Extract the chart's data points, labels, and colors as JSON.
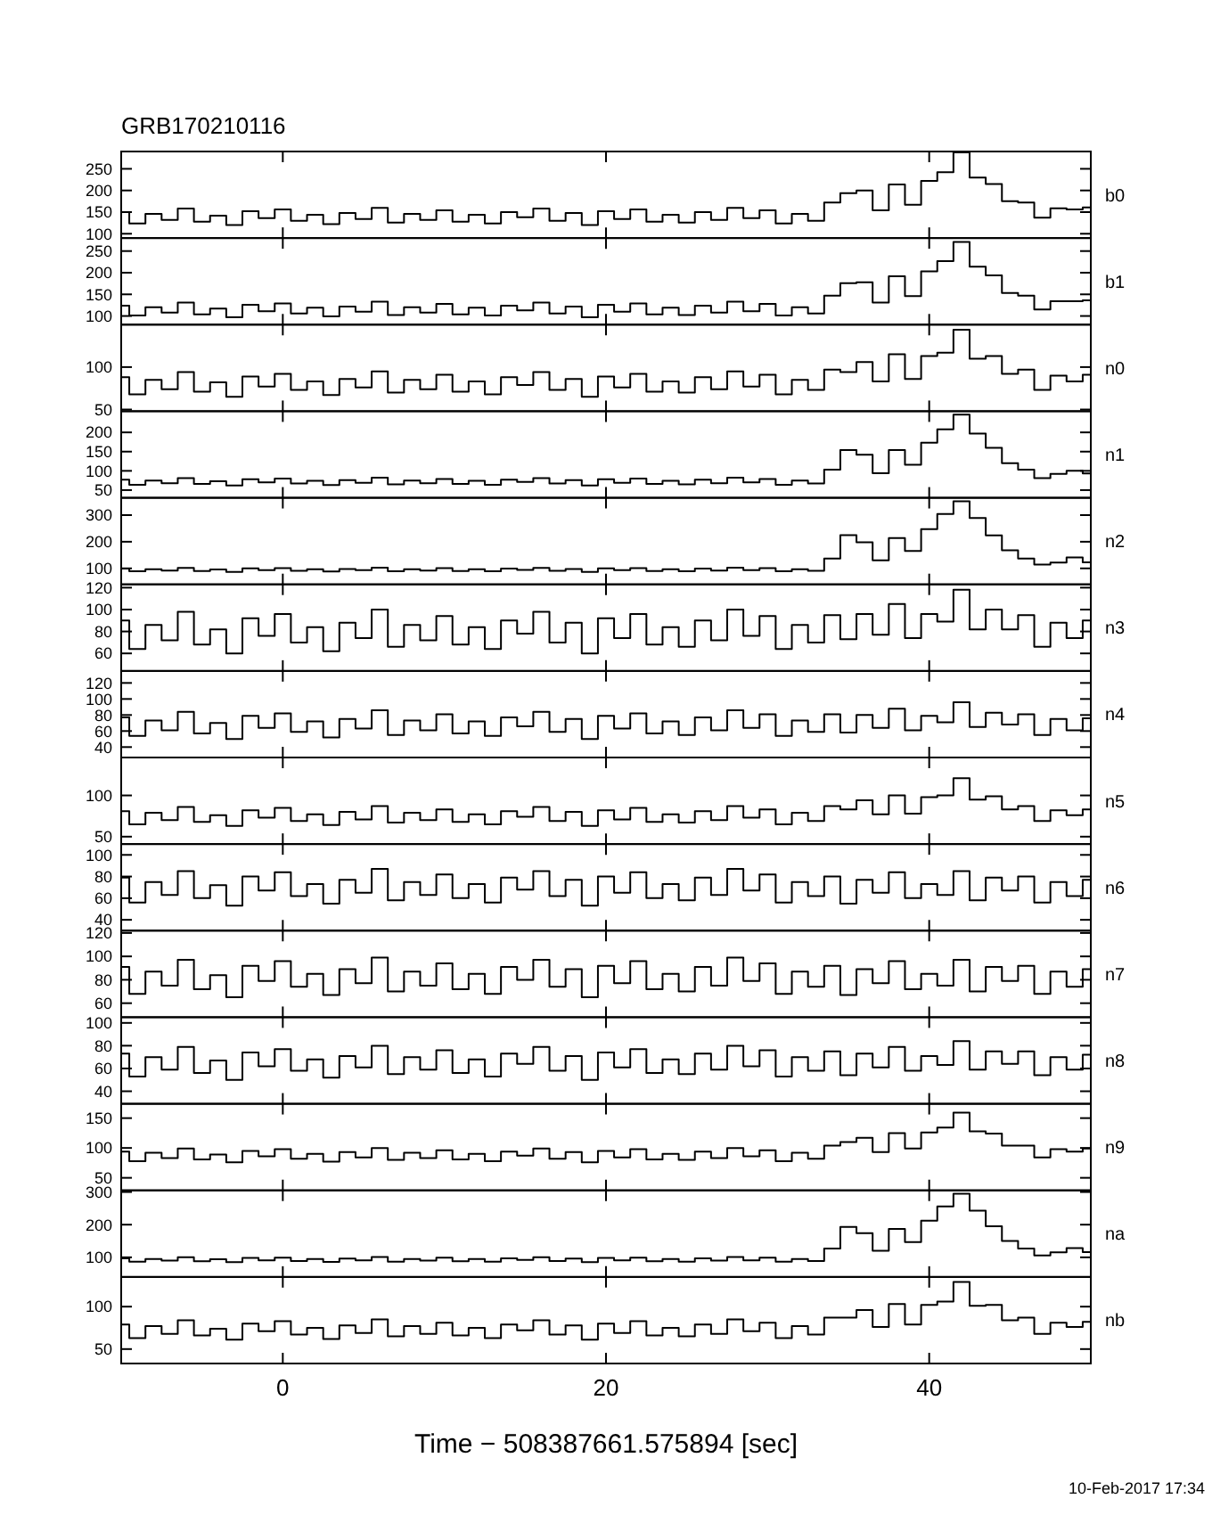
{
  "chart_data": [
    {
      "type": "step",
      "title": "GRB170210116",
      "x": [
        -10,
        -9,
        -8,
        -7,
        -6,
        -5,
        -4,
        -3,
        -2,
        -1,
        0,
        1,
        2,
        3,
        4,
        5,
        6,
        7,
        8,
        9,
        10,
        11,
        12,
        13,
        14,
        15,
        16,
        17,
        18,
        19,
        20,
        21,
        22,
        23,
        24,
        25,
        26,
        27,
        28,
        29,
        30,
        31,
        32,
        33,
        34,
        35,
        36,
        37,
        38,
        39,
        40,
        41,
        42,
        43,
        44,
        45,
        46,
        47,
        48,
        49,
        50
      ],
      "xlim": [
        -10,
        50
      ],
      "xticks": [
        0,
        20,
        40
      ],
      "ylim": [
        90,
        290
      ],
      "yticks": [
        100,
        150,
        200,
        250
      ],
      "tick_labels": "y",
      "color": "#000000",
      "series": [
        {
          "name": "b0",
          "values": [
            150,
            124,
            146,
            132,
            158,
            128,
            142,
            120,
            152,
            136,
            156,
            130,
            144,
            122,
            148,
            134,
            160,
            126,
            146,
            132,
            154,
            128,
            144,
            124,
            150,
            138,
            158,
            130,
            148,
            120,
            152,
            134,
            156,
            128,
            144,
            126,
            150,
            132,
            160,
            136,
            154,
            124,
            146,
            130,
            172,
            194,
            200,
            154,
            214,
            167,
            222,
            242,
            288,
            230,
            215,
            175,
            172,
            137,
            159,
            156,
            161
          ]
        }
      ]
    },
    {
      "type": "step",
      "x": [
        -10,
        -9,
        -8,
        -7,
        -6,
        -5,
        -4,
        -3,
        -2,
        -1,
        0,
        1,
        2,
        3,
        4,
        5,
        6,
        7,
        8,
        9,
        10,
        11,
        12,
        13,
        14,
        15,
        16,
        17,
        18,
        19,
        20,
        21,
        22,
        23,
        24,
        25,
        26,
        27,
        28,
        29,
        30,
        31,
        32,
        33,
        34,
        35,
        36,
        37,
        38,
        39,
        40,
        41,
        42,
        43,
        44,
        45,
        46,
        47,
        48,
        49,
        50
      ],
      "xlim": [
        -10,
        50
      ],
      "xticks": [
        0,
        20,
        40
      ],
      "ylim": [
        80,
        280
      ],
      "yticks": [
        100,
        150,
        200,
        250
      ],
      "tick_labels": "y",
      "color": "#000000",
      "series": [
        {
          "name": "b1",
          "values": [
            124,
            101,
            120,
            108,
            131,
            104,
            117,
            97,
            126,
            111,
            129,
            106,
            119,
            99,
            122,
            110,
            133,
            102,
            120,
            108,
            128,
            104,
            119,
            101,
            124,
            113,
            131,
            106,
            122,
            97,
            126,
            110,
            129,
            104,
            119,
            102,
            124,
            108,
            133,
            111,
            128,
            101,
            120,
            106,
            147,
            176,
            178,
            131,
            192,
            146,
            203,
            227,
            271,
            214,
            194,
            153,
            147,
            115,
            134,
            134,
            136
          ]
        }
      ]
    },
    {
      "type": "step",
      "x": [
        -10,
        -9,
        -8,
        -7,
        -6,
        -5,
        -4,
        -3,
        -2,
        -1,
        0,
        1,
        2,
        3,
        4,
        5,
        6,
        7,
        8,
        9,
        10,
        11,
        12,
        13,
        14,
        15,
        16,
        17,
        18,
        19,
        20,
        21,
        22,
        23,
        24,
        25,
        26,
        27,
        28,
        29,
        30,
        31,
        32,
        33,
        34,
        35,
        36,
        37,
        38,
        39,
        40,
        41,
        42,
        43,
        44,
        45,
        46,
        47,
        48,
        49,
        50
      ],
      "xlim": [
        -10,
        50
      ],
      "xticks": [
        0,
        20,
        40
      ],
      "ylim": [
        48,
        150
      ],
      "yticks": [
        50,
        100
      ],
      "tick_labels": "y",
      "color": "#000000",
      "series": [
        {
          "name": "n0",
          "values": [
            88,
            68,
            85,
            74,
            94,
            71,
            82,
            65,
            89,
            77,
            92,
            73,
            83,
            67,
            86,
            76,
            95,
            70,
            85,
            74,
            91,
            71,
            83,
            68,
            88,
            79,
            94,
            73,
            86,
            65,
            89,
            76,
            92,
            71,
            83,
            70,
            88,
            74,
            95,
            77,
            91,
            68,
            85,
            73,
            97,
            94,
            106,
            83,
            115,
            86,
            113,
            117,
            144,
            110,
            113,
            92,
            97,
            73,
            90,
            83,
            91
          ]
        }
      ]
    },
    {
      "type": "step",
      "x": [
        -10,
        -9,
        -8,
        -7,
        -6,
        -5,
        -4,
        -3,
        -2,
        -1,
        0,
        1,
        2,
        3,
        4,
        5,
        6,
        7,
        8,
        9,
        10,
        11,
        12,
        13,
        14,
        15,
        16,
        17,
        18,
        19,
        20,
        21,
        22,
        23,
        24,
        25,
        26,
        27,
        28,
        29,
        30,
        31,
        32,
        33,
        34,
        35,
        36,
        37,
        38,
        39,
        40,
        41,
        42,
        43,
        44,
        45,
        46,
        47,
        48,
        49,
        50
      ],
      "xlim": [
        -10,
        50
      ],
      "xticks": [
        0,
        20,
        40
      ],
      "ylim": [
        30,
        255
      ],
      "yticks": [
        50,
        100,
        150,
        200
      ],
      "tick_labels": "y",
      "color": "#000000",
      "series": [
        {
          "name": "n1",
          "values": [
            77,
            64,
            75,
            68,
            81,
            66,
            73,
            62,
            78,
            70,
            80,
            67,
            74,
            63,
            76,
            69,
            82,
            65,
            75,
            68,
            79,
            66,
            74,
            64,
            77,
            71,
            81,
            67,
            76,
            62,
            78,
            69,
            80,
            66,
            74,
            65,
            77,
            68,
            82,
            70,
            79,
            64,
            75,
            67,
            103,
            154,
            142,
            94,
            154,
            116,
            173,
            208,
            246,
            197,
            160,
            120,
            103,
            81,
            92,
            100,
            93
          ]
        }
      ]
    },
    {
      "type": "step",
      "x": [
        -10,
        -9,
        -8,
        -7,
        -6,
        -5,
        -4,
        -3,
        -2,
        -1,
        0,
        1,
        2,
        3,
        4,
        5,
        6,
        7,
        8,
        9,
        10,
        11,
        12,
        13,
        14,
        15,
        16,
        17,
        18,
        19,
        20,
        21,
        22,
        23,
        24,
        25,
        26,
        27,
        28,
        29,
        30,
        31,
        32,
        33,
        34,
        35,
        36,
        37,
        38,
        39,
        40,
        41,
        42,
        43,
        44,
        45,
        46,
        47,
        48,
        49,
        50
      ],
      "xlim": [
        -10,
        50
      ],
      "xticks": [
        0,
        20,
        40
      ],
      "ylim": [
        40,
        365
      ],
      "yticks": [
        100,
        200,
        300
      ],
      "tick_labels": "y",
      "color": "#000000",
      "series": [
        {
          "name": "n2",
          "values": [
            99,
            89,
            97,
            92,
            102,
            90,
            96,
            87,
            100,
            93,
            101,
            91,
            97,
            88,
            98,
            93,
            103,
            89,
            97,
            92,
            101,
            90,
            97,
            89,
            99,
            94,
            102,
            91,
            98,
            87,
            100,
            93,
            101,
            90,
            97,
            89,
            99,
            92,
            103,
            93,
            101,
            89,
            97,
            91,
            137,
            225,
            198,
            130,
            214,
            165,
            247,
            304,
            352,
            289,
            224,
            168,
            137,
            114,
            122,
            141,
            123
          ]
        }
      ]
    },
    {
      "type": "step",
      "x": [
        -10,
        -9,
        -8,
        -7,
        -6,
        -5,
        -4,
        -3,
        -2,
        -1,
        0,
        1,
        2,
        3,
        4,
        5,
        6,
        7,
        8,
        9,
        10,
        11,
        12,
        13,
        14,
        15,
        16,
        17,
        18,
        19,
        20,
        21,
        22,
        23,
        24,
        25,
        26,
        27,
        28,
        29,
        30,
        31,
        32,
        33,
        34,
        35,
        36,
        37,
        38,
        39,
        40,
        41,
        42,
        43,
        44,
        45,
        46,
        47,
        48,
        49,
        50
      ],
      "xlim": [
        -10,
        50
      ],
      "xticks": [
        0,
        20,
        40
      ],
      "ylim": [
        44,
        123
      ],
      "yticks": [
        60,
        80,
        100,
        120
      ],
      "tick_labels": "y",
      "color": "#000000",
      "series": [
        {
          "name": "n3",
          "values": [
            90,
            64,
            86,
            72,
            98,
            68,
            82,
            60,
            92,
            76,
            96,
            70,
            84,
            62,
            88,
            74,
            100,
            66,
            86,
            72,
            94,
            68,
            84,
            64,
            90,
            78,
            98,
            70,
            88,
            60,
            92,
            74,
            96,
            68,
            84,
            66,
            90,
            72,
            100,
            76,
            94,
            64,
            86,
            70,
            95,
            73,
            96,
            77,
            105,
            74,
            96,
            89,
            118,
            82,
            100,
            82,
            95,
            66,
            88,
            74,
            90
          ]
        }
      ]
    },
    {
      "type": "step",
      "x": [
        -10,
        -9,
        -8,
        -7,
        -6,
        -5,
        -4,
        -3,
        -2,
        -1,
        0,
        1,
        2,
        3,
        4,
        5,
        6,
        7,
        8,
        9,
        10,
        11,
        12,
        13,
        14,
        15,
        16,
        17,
        18,
        19,
        20,
        21,
        22,
        23,
        24,
        25,
        26,
        27,
        28,
        29,
        30,
        31,
        32,
        33,
        34,
        35,
        36,
        37,
        38,
        39,
        40,
        41,
        42,
        43,
        44,
        45,
        46,
        47,
        48,
        49,
        50
      ],
      "xlim": [
        -10,
        50
      ],
      "xticks": [
        0,
        20,
        40
      ],
      "ylim": [
        27,
        135
      ],
      "yticks": [
        40,
        60,
        80,
        100,
        120
      ],
      "tick_labels": "y",
      "color": "#000000",
      "series": [
        {
          "name": "n4",
          "values": [
            77,
            54,
            73,
            61,
            84,
            57,
            70,
            50,
            79,
            64,
            82,
            59,
            72,
            52,
            75,
            63,
            86,
            55,
            73,
            61,
            81,
            57,
            72,
            54,
            77,
            66,
            84,
            59,
            75,
            50,
            79,
            63,
            82,
            57,
            72,
            55,
            77,
            61,
            86,
            64,
            81,
            54,
            73,
            59,
            81,
            58,
            80,
            64,
            88,
            61,
            79,
            71,
            96,
            65,
            83,
            68,
            81,
            55,
            75,
            61,
            76
          ]
        }
      ]
    },
    {
      "type": "step",
      "x": [
        -10,
        -9,
        -8,
        -7,
        -6,
        -5,
        -4,
        -3,
        -2,
        -1,
        0,
        1,
        2,
        3,
        4,
        5,
        6,
        7,
        8,
        9,
        10,
        11,
        12,
        13,
        14,
        15,
        16,
        17,
        18,
        19,
        20,
        21,
        22,
        23,
        24,
        25,
        26,
        27,
        28,
        29,
        30,
        31,
        32,
        33,
        34,
        35,
        36,
        37,
        38,
        39,
        40,
        41,
        42,
        43,
        44,
        45,
        46,
        47,
        48,
        49,
        50
      ],
      "xlim": [
        -10,
        50
      ],
      "xticks": [
        0,
        20,
        40
      ],
      "ylim": [
        41,
        146
      ],
      "yticks": [
        50,
        100
      ],
      "tick_labels": "y",
      "color": "#000000",
      "series": [
        {
          "name": "n5",
          "values": [
            81,
            65,
            79,
            70,
            86,
            68,
            76,
            63,
            82,
            73,
            85,
            69,
            77,
            64,
            80,
            71,
            87,
            67,
            79,
            70,
            83,
            68,
            77,
            65,
            81,
            74,
            86,
            69,
            80,
            63,
            82,
            71,
            85,
            68,
            77,
            67,
            81,
            70,
            87,
            73,
            83,
            65,
            79,
            69,
            87,
            83,
            94,
            77,
            100,
            78,
            98,
            100,
            121,
            95,
            99,
            83,
            87,
            69,
            82,
            76,
            83
          ]
        }
      ]
    },
    {
      "type": "step",
      "x": [
        -10,
        -9,
        -8,
        -7,
        -6,
        -5,
        -4,
        -3,
        -2,
        -1,
        0,
        1,
        2,
        3,
        4,
        5,
        6,
        7,
        8,
        9,
        10,
        11,
        12,
        13,
        14,
        15,
        16,
        17,
        18,
        19,
        20,
        21,
        22,
        23,
        24,
        25,
        26,
        27,
        28,
        29,
        30,
        31,
        32,
        33,
        34,
        35,
        36,
        37,
        38,
        39,
        40,
        41,
        42,
        43,
        44,
        45,
        46,
        47,
        48,
        49,
        50
      ],
      "xlim": [
        -10,
        50
      ],
      "xticks": [
        0,
        20,
        40
      ],
      "ylim": [
        30,
        110
      ],
      "yticks": [
        40,
        60,
        80,
        100
      ],
      "tick_labels": "y",
      "color": "#000000",
      "series": [
        {
          "name": "n6",
          "values": [
            79,
            56,
            75,
            63,
            85,
            60,
            72,
            53,
            80,
            67,
            84,
            62,
            73,
            55,
            77,
            65,
            87,
            58,
            75,
            63,
            82,
            60,
            73,
            56,
            79,
            68,
            85,
            62,
            77,
            53,
            80,
            65,
            84,
            60,
            73,
            58,
            79,
            63,
            87,
            67,
            82,
            56,
            75,
            62,
            80,
            55,
            77,
            65,
            84,
            60,
            73,
            63,
            85,
            58,
            79,
            67,
            80,
            56,
            75,
            62,
            77
          ]
        }
      ]
    },
    {
      "type": "step",
      "x": [
        -10,
        -9,
        -8,
        -7,
        -6,
        -5,
        -4,
        -3,
        -2,
        -1,
        0,
        1,
        2,
        3,
        4,
        5,
        6,
        7,
        8,
        9,
        10,
        11,
        12,
        13,
        14,
        15,
        16,
        17,
        18,
        19,
        20,
        21,
        22,
        23,
        24,
        25,
        26,
        27,
        28,
        29,
        30,
        31,
        32,
        33,
        34,
        35,
        36,
        37,
        38,
        39,
        40,
        41,
        42,
        43,
        44,
        45,
        46,
        47,
        48,
        49,
        50
      ],
      "xlim": [
        -10,
        50
      ],
      "xticks": [
        0,
        20,
        40
      ],
      "ylim": [
        48,
        122
      ],
      "yticks": [
        60,
        80,
        100,
        120
      ],
      "tick_labels": "y",
      "color": "#000000",
      "series": [
        {
          "name": "n7",
          "values": [
            91,
            68,
            87,
            75,
            97,
            72,
            84,
            65,
            92,
            79,
            96,
            74,
            85,
            67,
            89,
            77,
            99,
            70,
            87,
            75,
            94,
            72,
            85,
            68,
            91,
            80,
            97,
            74,
            89,
            65,
            92,
            77,
            96,
            72,
            85,
            70,
            91,
            75,
            99,
            79,
            94,
            68,
            87,
            74,
            92,
            67,
            89,
            77,
            96,
            72,
            85,
            75,
            97,
            70,
            91,
            79,
            92,
            68,
            87,
            74,
            89
          ]
        }
      ]
    },
    {
      "type": "step",
      "x": [
        -10,
        -9,
        -8,
        -7,
        -6,
        -5,
        -4,
        -3,
        -2,
        -1,
        0,
        1,
        2,
        3,
        4,
        5,
        6,
        7,
        8,
        9,
        10,
        11,
        12,
        13,
        14,
        15,
        16,
        17,
        18,
        19,
        20,
        21,
        22,
        23,
        24,
        25,
        26,
        27,
        28,
        29,
        30,
        31,
        32,
        33,
        34,
        35,
        36,
        37,
        38,
        39,
        40,
        41,
        42,
        43,
        44,
        45,
        46,
        47,
        48,
        49,
        50
      ],
      "xlim": [
        -10,
        50
      ],
      "xticks": [
        0,
        20,
        40
      ],
      "ylim": [
        29,
        105
      ],
      "yticks": [
        40,
        60,
        80,
        100
      ],
      "tick_labels": "y",
      "color": "#000000",
      "series": [
        {
          "name": "n8",
          "values": [
            73,
            53,
            70,
            59,
            79,
            56,
            67,
            50,
            74,
            62,
            77,
            58,
            68,
            52,
            71,
            61,
            80,
            55,
            70,
            59,
            76,
            56,
            68,
            53,
            73,
            64,
            79,
            58,
            71,
            50,
            74,
            61,
            77,
            56,
            68,
            55,
            73,
            59,
            80,
            62,
            76,
            53,
            70,
            58,
            75,
            54,
            73,
            61,
            79,
            58,
            71,
            63,
            84,
            59,
            75,
            64,
            75,
            54,
            70,
            59,
            72
          ]
        }
      ]
    },
    {
      "type": "step",
      "x": [
        -10,
        -9,
        -8,
        -7,
        -6,
        -5,
        -4,
        -3,
        -2,
        -1,
        0,
        1,
        2,
        3,
        4,
        5,
        6,
        7,
        8,
        9,
        10,
        11,
        12,
        13,
        14,
        15,
        16,
        17,
        18,
        19,
        20,
        21,
        22,
        23,
        24,
        25,
        26,
        27,
        28,
        29,
        30,
        31,
        32,
        33,
        34,
        35,
        36,
        37,
        38,
        39,
        40,
        41,
        42,
        43,
        44,
        45,
        46,
        47,
        48,
        49,
        50
      ],
      "xlim": [
        -10,
        50
      ],
      "xticks": [
        0,
        20,
        40
      ],
      "ylim": [
        29,
        174
      ],
      "yticks": [
        50,
        100,
        150
      ],
      "tick_labels": "y",
      "color": "#000000",
      "series": [
        {
          "name": "n9",
          "values": [
            94,
            78,
            92,
            83,
            99,
            81,
            89,
            76,
            95,
            86,
            98,
            82,
            90,
            77,
            93,
            84,
            100,
            80,
            92,
            83,
            96,
            81,
            90,
            78,
            94,
            87,
            99,
            82,
            93,
            76,
            95,
            84,
            98,
            81,
            90,
            80,
            94,
            83,
            100,
            86,
            96,
            78,
            92,
            82,
            104,
            110,
            117,
            93,
            125,
            99,
            126,
            134,
            159,
            128,
            124,
            104,
            104,
            84,
            98,
            94,
            99
          ]
        }
      ]
    },
    {
      "type": "step",
      "x": [
        -10,
        -9,
        -8,
        -7,
        -6,
        -5,
        -4,
        -3,
        -2,
        -1,
        0,
        1,
        2,
        3,
        4,
        5,
        6,
        7,
        8,
        9,
        10,
        11,
        12,
        13,
        14,
        15,
        16,
        17,
        18,
        19,
        20,
        21,
        22,
        23,
        24,
        25,
        26,
        27,
        28,
        29,
        30,
        31,
        32,
        33,
        34,
        35,
        36,
        37,
        38,
        39,
        40,
        41,
        42,
        43,
        44,
        45,
        46,
        47,
        48,
        49,
        50
      ],
      "xlim": [
        -10,
        50
      ],
      "xticks": [
        0,
        20,
        40
      ],
      "ylim": [
        40,
        305
      ],
      "yticks": [
        100,
        200,
        300
      ],
      "tick_labels": "y",
      "color": "#000000",
      "series": [
        {
          "name": "na",
          "values": [
            97,
            87,
            95,
            90,
            100,
            88,
            94,
            85,
            98,
            91,
            99,
            89,
            95,
            86,
            96,
            91,
            101,
            87,
            95,
            90,
            99,
            88,
            95,
            87,
            97,
            92,
            100,
            89,
            96,
            85,
            98,
            91,
            99,
            88,
            95,
            87,
            97,
            90,
            101,
            91,
            99,
            87,
            95,
            89,
            127,
            193,
            174,
            120,
            187,
            147,
            212,
            256,
            295,
            243,
            195,
            150,
            127,
            106,
            115,
            128,
            116
          ]
        }
      ]
    },
    {
      "type": "step",
      "x": [
        -10,
        -9,
        -8,
        -7,
        -6,
        -5,
        -4,
        -3,
        -2,
        -1,
        0,
        1,
        2,
        3,
        4,
        5,
        6,
        7,
        8,
        9,
        10,
        11,
        12,
        13,
        14,
        15,
        16,
        17,
        18,
        19,
        20,
        21,
        22,
        23,
        24,
        25,
        26,
        27,
        28,
        29,
        30,
        31,
        32,
        33,
        34,
        35,
        36,
        37,
        38,
        39,
        40,
        41,
        42,
        43,
        44,
        45,
        46,
        47,
        48,
        49,
        50
      ],
      "xlim": [
        -10,
        50
      ],
      "xticks": [
        0,
        20,
        40
      ],
      "ylim": [
        33,
        135
      ],
      "yticks": [
        50,
        100
      ],
      "xlabel": "Time − 508387661.575894 [sec]",
      "annotations": [
        "10-Feb-2017 17:34"
      ],
      "color": "#000000",
      "series": [
        {
          "name": "nb",
          "values": [
            79,
            63,
            77,
            68,
            84,
            66,
            74,
            61,
            80,
            71,
            83,
            67,
            75,
            62,
            78,
            69,
            85,
            65,
            77,
            68,
            81,
            66,
            75,
            63,
            79,
            72,
            84,
            67,
            78,
            61,
            80,
            69,
            83,
            66,
            75,
            65,
            79,
            68,
            85,
            71,
            81,
            63,
            77,
            67,
            87,
            87,
            96,
            76,
            103,
            79,
            102,
            106,
            129,
            101,
            102,
            84,
            87,
            68,
            81,
            76,
            82
          ]
        }
      ]
    }
  ]
}
